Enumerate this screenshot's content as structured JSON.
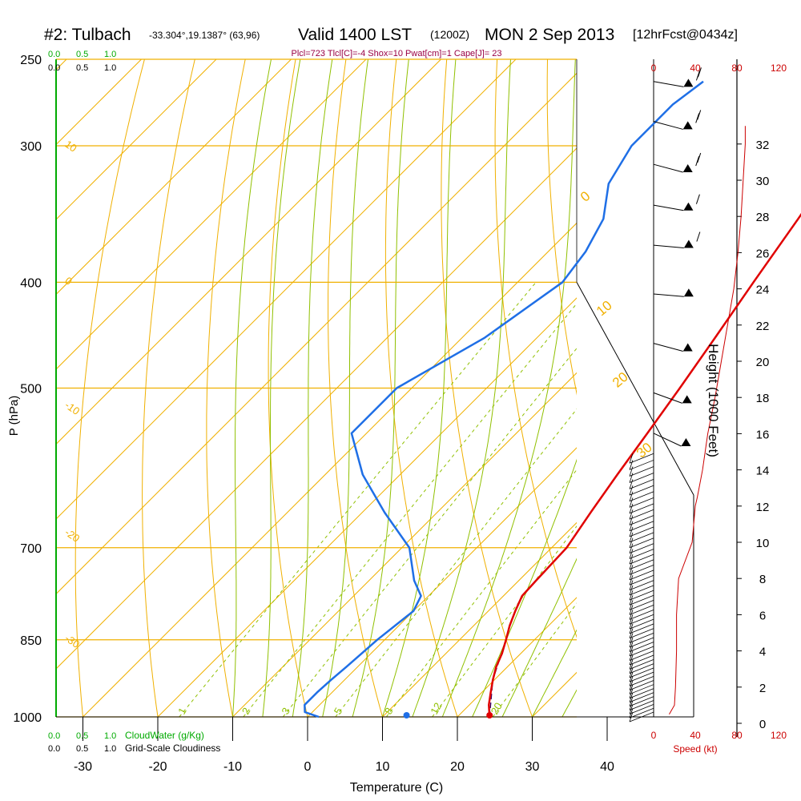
{
  "header": {
    "station": "#2: Tulbach",
    "coords": "-33.304°,19.1387° (63,96)",
    "valid": "Valid 1400 LST",
    "zulu": "(1200Z)",
    "date": "MON 2 Sep 2013",
    "fcst": "[12hrFcst@0434z]",
    "indices": "Plcl=723 Tlcl[C]=-4 Shox=10 Pwat[cm]=1 Cape[J]= 23"
  },
  "top_scales": {
    "cloudwater_ticks": [
      "0.0",
      "0.5",
      "1.0"
    ],
    "cloudiness_ticks": [
      "0.0",
      "0.5",
      "1.0"
    ]
  },
  "bottom_scales": {
    "cloudwater_ticks": [
      "0.0",
      "0.5",
      "1.0"
    ],
    "cloudwater_label": "CloudWater (g/Kg)",
    "cloudiness_ticks": [
      "0.0",
      "0.5",
      "1.0"
    ],
    "cloudiness_label": "Grid-Scale Cloudiness"
  },
  "colors": {
    "temperature": "#e00000",
    "dewpoint": "#1f6fe6",
    "isotherm": "#f0b000",
    "dry_adiabat": "#f0b000",
    "moist_adiabat": "#90c000",
    "mixing_ratio": "#90c000",
    "cloud_scale": "#00aa00",
    "wind_speed": "#cc0000",
    "header_indices": "#990044"
  },
  "chart_data": {
    "type": "skew-t",
    "xlabel": "Temperature (C)",
    "ylabel": "P (hPa)",
    "right_label": "Height (1000 Feet)",
    "x_ticks": [
      -30,
      -20,
      -10,
      0,
      10,
      20,
      30,
      40
    ],
    "p_levels": [
      250,
      300,
      400,
      500,
      700,
      850,
      1000
    ],
    "xlim": [
      -34,
      36
    ],
    "plim": [
      1000,
      250
    ],
    "height_ticks": [
      0,
      2,
      4,
      6,
      8,
      10,
      12,
      14,
      16,
      18,
      20,
      22,
      24,
      26,
      28,
      30,
      32
    ],
    "speed_ticks": [
      0,
      40,
      80,
      120
    ],
    "speed_label": "Speed (kt)",
    "dry_adiabat_labels": [
      {
        "text": "10",
        "p": 300
      },
      {
        "text": "0",
        "p": 400
      },
      {
        "text": "-10",
        "p": 520
      },
      {
        "text": "-20",
        "p": 680
      },
      {
        "text": "-30",
        "p": 850
      }
    ],
    "moist_adiabat_labels": [
      {
        "text": "0",
        "t": 36,
        "p": 338
      },
      {
        "text": "10",
        "t": 36,
        "p": 430
      },
      {
        "text": "20",
        "t": 36,
        "p": 500
      },
      {
        "text": "30",
        "t": 36,
        "p": 580
      }
    ],
    "mixing_ratio_labels": [
      "1",
      "2",
      "3",
      "5",
      "8",
      "12",
      "20"
    ],
    "mixing_ratio_values": [
      1,
      2,
      3,
      5,
      8,
      12,
      20
    ],
    "temperature": {
      "name": "Temperature",
      "p": [
        1000,
        975,
        950,
        925,
        900,
        875,
        850,
        825,
        800,
        775,
        750,
        700,
        650,
        600,
        550,
        500,
        450,
        400,
        350,
        300,
        275,
        262
      ],
      "t": [
        24.3,
        22.6,
        21.2,
        19.8,
        18.5,
        17.5,
        16.2,
        14.8,
        13.6,
        12.5,
        12.3,
        12.0,
        10.5,
        9.0,
        7.5,
        5.8,
        3.8,
        1.5,
        -1.0,
        -4.0,
        -5.0,
        -5.5
      ]
    },
    "dewpoint": {
      "name": "Dewpoint",
      "p": [
        1000,
        990,
        975,
        950,
        925,
        900,
        850,
        800,
        775,
        750,
        700,
        650,
        600,
        550,
        500,
        450,
        400,
        375,
        350,
        325,
        300,
        275,
        262
      ],
      "t": [
        1.5,
        -1.0,
        -2.0,
        -2.0,
        -1.8,
        -1.5,
        -1.0,
        0.0,
        -1.0,
        -4.0,
        -9.0,
        -17.0,
        -25.0,
        -32.0,
        -32.0,
        -27.0,
        -24.0,
        -25.0,
        -27.0,
        -31.0,
        -33.0,
        -33.0,
        -32.0
      ]
    },
    "parcel": {
      "name": "Parcel",
      "p": [
        1000,
        925,
        850
      ],
      "t": [
        24.3,
        19.8,
        16.2
      ]
    },
    "surface_dewpoint_marker": {
      "p": 1000,
      "t": 6.8
    },
    "wind_speed_profile": {
      "height_kft": [
        0.5,
        1.0,
        2.0,
        4.0,
        6.0,
        8.0,
        10.0,
        12.0,
        12.5,
        14.0,
        16.0,
        18.0,
        20.0,
        22.0,
        24.0,
        26.0,
        28.0,
        30.0,
        32.0,
        33.0
      ],
      "speed_kt": [
        15,
        20,
        21,
        22,
        22,
        24,
        37,
        40,
        42,
        47,
        52,
        59,
        65,
        71,
        77,
        81,
        84,
        86,
        88,
        88
      ]
    },
    "wind_barbs": [
      {
        "p": 262,
        "dir": 280,
        "kt": 75
      },
      {
        "p": 285,
        "dir": 285,
        "kt": 75
      },
      {
        "p": 312,
        "dir": 285,
        "kt": 70
      },
      {
        "p": 340,
        "dir": 280,
        "kt": 65
      },
      {
        "p": 370,
        "dir": 275,
        "kt": 60
      },
      {
        "p": 410,
        "dir": 275,
        "kt": 55
      },
      {
        "p": 455,
        "dir": 285,
        "kt": 50
      },
      {
        "p": 505,
        "dir": 290,
        "kt": 50
      },
      {
        "p": 550,
        "dir": 295,
        "kt": 50
      }
    ]
  }
}
